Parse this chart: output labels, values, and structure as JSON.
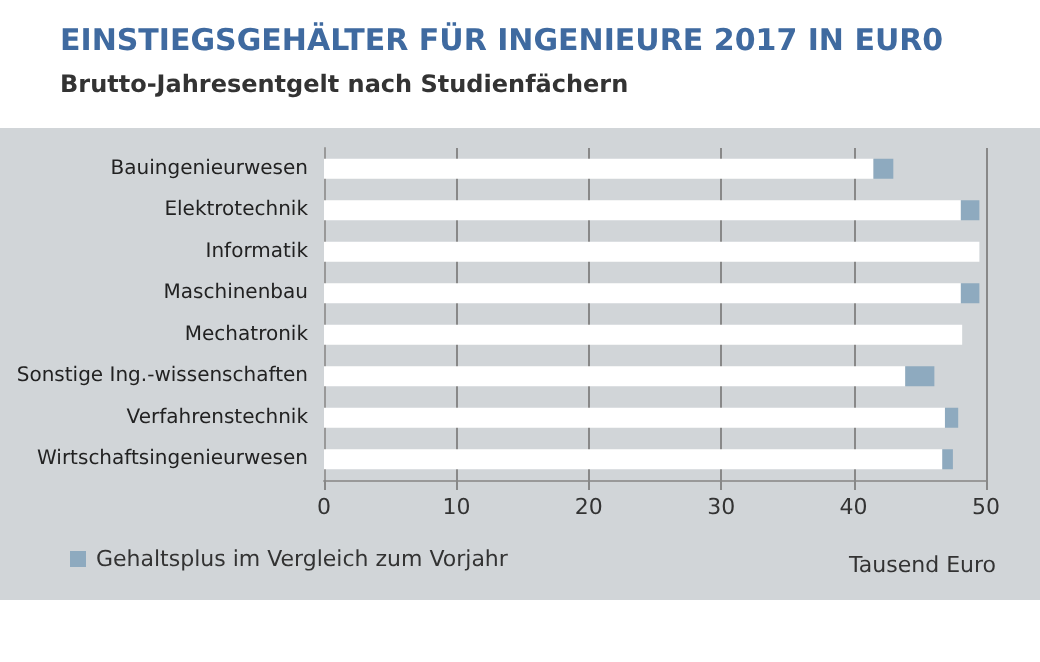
{
  "chart_data": {
    "type": "bar",
    "orientation": "horizontal",
    "stacked": true,
    "title": "EINSTIEGSGEHÄLTER FÜR INGENIEURE 2017 IN EUR0",
    "subtitle": "Brutto-Jahresentgelt nach Studienfächern",
    "xlabel": "Tausend Euro",
    "categories": [
      "Bauingenieurwesen",
      "Elektrotechnik",
      "Informatik",
      "Maschinenbau",
      "Mechatronik",
      "Sonstige Ing.-wissenschaften",
      "Verfahrenstechnik",
      "Wirtschaftsingenieurwesen"
    ],
    "series": [
      {
        "color": "#ffffff",
        "values": [
          41.5,
          48.1,
          49.5,
          48.1,
          48.2,
          43.9,
          46.9,
          46.7
        ]
      },
      {
        "name": "Gehaltsplus im Vergleich zum Vorjahr",
        "color": "#8eaabf",
        "values": [
          1.5,
          1.4,
          null,
          1.4,
          null,
          2.2,
          1.0,
          0.8
        ]
      }
    ],
    "xlim": [
      0,
      50
    ],
    "xticks": [
      0,
      10,
      20,
      30,
      40,
      50
    ],
    "grid": "x",
    "legend": "bottom left"
  }
}
